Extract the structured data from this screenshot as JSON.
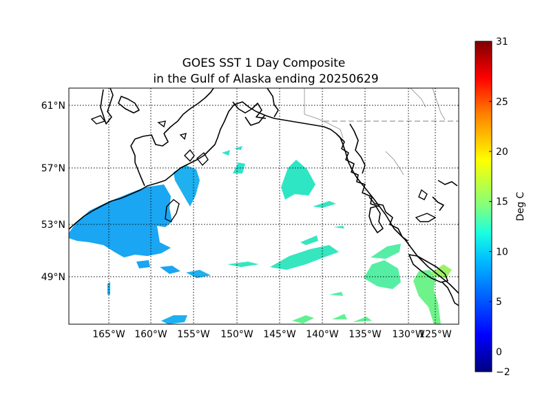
{
  "title_line1": "GOES SST 1 Day Composite",
  "title_line2": "in the Gulf of Alaska ending 20250629",
  "map": {
    "lat_labels": [
      "61°N",
      "57°N",
      "53°N",
      "49°N"
    ],
    "lon_labels": [
      "165°W",
      "160°W",
      "155°W",
      "150°W",
      "145°W",
      "140°W",
      "135°W",
      "130°W",
      "125°W"
    ]
  },
  "colorbar": {
    "label": "Deg C",
    "min": -2,
    "max": 31,
    "ticks": [
      {
        "value": -2,
        "text": "−2"
      },
      {
        "value": 0,
        "text": "0"
      },
      {
        "value": 5,
        "text": "5"
      },
      {
        "value": 10,
        "text": "10"
      },
      {
        "value": 15,
        "text": "15"
      },
      {
        "value": 20,
        "text": "20"
      },
      {
        "value": 25,
        "text": "25"
      },
      {
        "value": 31,
        "text": "31"
      }
    ],
    "colormap": [
      "#00007f",
      "#0000ff",
      "#007fff",
      "#00ffff",
      "#7fff7f",
      "#ffff00",
      "#ff7f00",
      "#ff0000",
      "#7f0000"
    ]
  },
  "colors": {
    "sst_cool": "#1aa3f5",
    "sst_mid": "#2de8b4",
    "sst_warm": "#6ef58a"
  }
}
